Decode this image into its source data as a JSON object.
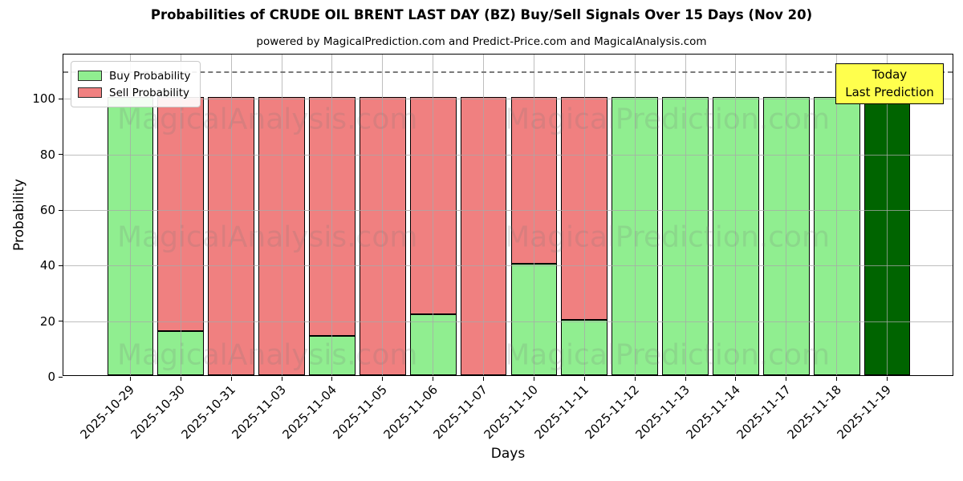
{
  "chart_data": {
    "type": "bar",
    "stacked": true,
    "title": "Probabilities of CRUDE OIL BRENT LAST DAY (BZ) Buy/Sell Signals Over 15 Days (Nov 20)",
    "subtitle": "powered by MagicalPrediction.com and Predict-Price.com and MagicalAnalysis.com",
    "xlabel": "Days",
    "ylabel": "Probability",
    "ylim": [
      0,
      116
    ],
    "yticks": [
      0,
      20,
      40,
      60,
      80,
      100
    ],
    "grid": true,
    "legend_position": "upper-left",
    "categories": [
      "2025-10-29",
      "2025-10-30",
      "2025-10-31",
      "2025-11-03",
      "2025-11-04",
      "2025-11-05",
      "2025-11-06",
      "2025-11-07",
      "2025-11-10",
      "2025-11-11",
      "2025-11-12",
      "2025-11-13",
      "2025-11-14",
      "2025-11-17",
      "2025-11-18",
      "2025-11-19"
    ],
    "series": [
      {
        "name": "Buy Probability",
        "color": "#90ee90",
        "values": [
          100,
          16,
          0,
          0,
          14,
          0,
          22,
          0,
          40,
          20,
          100,
          100,
          100,
          100,
          100,
          100
        ]
      },
      {
        "name": "Sell Probability",
        "color": "#f08080",
        "values": [
          0,
          84,
          100,
          100,
          86,
          100,
          78,
          100,
          60,
          80,
          0,
          0,
          0,
          0,
          0,
          0
        ]
      }
    ],
    "today": {
      "index": 15,
      "bar_color": "#006400",
      "box_color": "#ffff4d",
      "label_lines": [
        "Today",
        "Last Prediction"
      ]
    },
    "threshold_line": {
      "value": 110,
      "color": "#7a7a7a",
      "style": "dashed"
    },
    "watermarks": {
      "left": "MagicalAnalysis.com",
      "right": "MagicalPrediction.com"
    },
    "colors": {
      "bar_edge": "#000000",
      "grid": "#a8a8a8"
    }
  }
}
